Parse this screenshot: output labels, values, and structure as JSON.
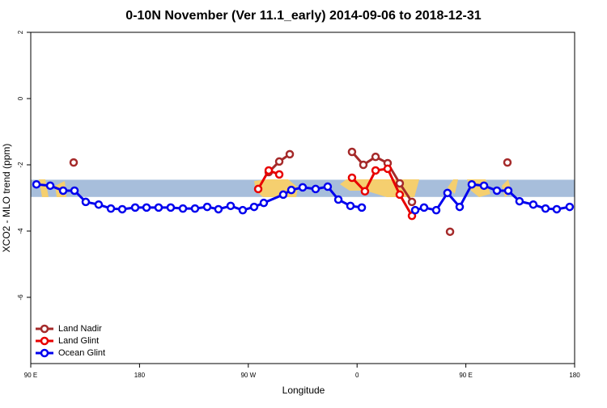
{
  "chart_data": {
    "type": "line",
    "title": "0-10N November (Ver 11.1_early)   2014-09-06 to 2018-12-31",
    "x_label": "Longitude",
    "y_label": "XCO2 - MLO trend (ppm)",
    "xlim": [
      90,
      540
    ],
    "xticks": [
      {
        "value": 90,
        "label": "90 E"
      },
      {
        "value": 180,
        "label": "180"
      },
      {
        "value": 270,
        "label": "90 W"
      },
      {
        "value": 360,
        "label": "0"
      },
      {
        "value": 450,
        "label": "90 E"
      },
      {
        "value": 540,
        "label": "180"
      }
    ],
    "ylim": [
      -8,
      2
    ],
    "yticks": [
      -6,
      -4,
      -2,
      0,
      2
    ],
    "band": [
      -2.97,
      -2.45
    ],
    "band_color": "#a7bedb",
    "legend": "bottom-left",
    "series": [
      {
        "name": "Land Nadir",
        "color": "#a52a2a",
        "x": [
          125.5,
          null,
          286.9,
          295.6,
          304.3,
          null,
          355.8,
          365.2,
          375.3,
          385.3,
          395.3,
          405.4,
          null,
          436.9,
          null,
          484.4
        ],
        "values": [
          -1.93,
          null,
          -2.22,
          -1.9,
          -1.68,
          null,
          -1.61,
          -2.0,
          -1.76,
          -1.95,
          -2.56,
          -3.12,
          null,
          -4.02,
          null,
          -1.93
        ]
      },
      {
        "name": "Land Glint",
        "color": "#e80000",
        "x": [
          278.2,
          286.9,
          295.6,
          null,
          355.8,
          366.5,
          375.3,
          385.3,
          395.3,
          405.4
        ],
        "values": [
          -2.73,
          -2.17,
          -2.29,
          null,
          -2.39,
          -2.8,
          -2.17,
          -2.12,
          -2.9,
          -3.54
        ]
      },
      {
        "name": "Ocean Glint",
        "color": "#0000ee",
        "x": [
          94.7,
          106.1,
          116.8,
          126.2,
          135.5,
          146.2,
          156.3,
          165.7,
          176.4,
          185.8,
          195.8,
          205.8,
          215.9,
          225.9,
          236.0,
          245.3,
          255.4,
          265.4,
          274.8,
          282.8,
          298.9,
          305.6,
          315.0,
          325.7,
          335.7,
          344.5,
          354.5,
          363.9,
          null,
          408.1,
          415.4,
          425.5,
          434.8,
          444.9,
          454.9,
          465.0,
          475.7,
          485.1,
          494.4,
          505.8,
          515.9,
          525.2,
          535.9
        ],
        "values": [
          -2.59,
          -2.63,
          -2.78,
          -2.78,
          -3.12,
          -3.2,
          -3.32,
          -3.34,
          -3.29,
          -3.29,
          -3.29,
          -3.29,
          -3.32,
          -3.32,
          -3.27,
          -3.34,
          -3.24,
          -3.37,
          -3.27,
          -3.15,
          -2.9,
          -2.76,
          -2.68,
          -2.73,
          -2.66,
          -3.05,
          -3.24,
          -3.29,
          null,
          -3.37,
          -3.29,
          -3.37,
          -2.85,
          -3.27,
          -2.59,
          -2.63,
          -2.78,
          -2.78,
          -3.1,
          -3.2,
          -3.32,
          -3.34,
          -3.27
        ]
      }
    ]
  }
}
